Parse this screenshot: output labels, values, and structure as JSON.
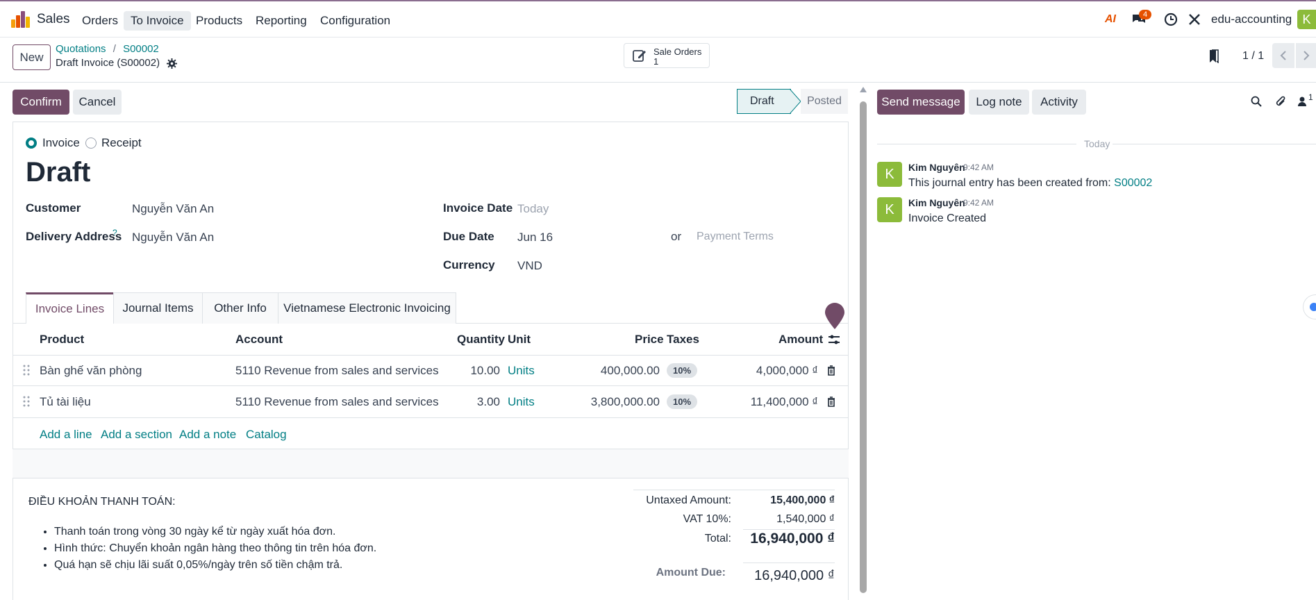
{
  "nav": {
    "app_name": "Sales",
    "menu": [
      "Orders",
      "To Invoice",
      "Products",
      "Reporting",
      "Configuration"
    ],
    "active_menu": "To Invoice",
    "ai_label": "AI",
    "message_count": "4",
    "company": "edu-accounting",
    "user_initial": "K"
  },
  "control": {
    "new_label": "New",
    "breadcrumb_root": "Quotations",
    "breadcrumb_sep": "/",
    "breadcrumb_parent": "S00002",
    "record_title": "Draft Invoice (S00002)",
    "smart_button_label": "Sale Orders",
    "smart_button_count": "1",
    "pager": "1 / 1"
  },
  "actions": {
    "confirm": "Confirm",
    "cancel": "Cancel",
    "status_draft": "Draft",
    "status_posted": "Posted"
  },
  "form": {
    "type_invoice": "Invoice",
    "type_receipt": "Receipt",
    "state_title": "Draft",
    "customer_label": "Customer",
    "customer_value": "Nguyễn Văn An",
    "delivery_label": "Delivery Address",
    "delivery_help": "?",
    "delivery_value": "Nguyễn Văn An",
    "invoice_date_label": "Invoice Date",
    "invoice_date_placeholder": "Today",
    "due_date_label": "Due Date",
    "due_date_value": "Jun 16",
    "or_label": "or",
    "payment_terms_placeholder": "Payment Terms",
    "currency_label": "Currency",
    "currency_value": "VND"
  },
  "tabs": [
    "Invoice Lines",
    "Journal Items",
    "Other Info",
    "Vietnamese Electronic Invoicing"
  ],
  "table": {
    "headers": {
      "product": "Product",
      "account": "Account",
      "quantity": "Quantity",
      "unit": "Unit",
      "price": "Price",
      "taxes": "Taxes",
      "amount": "Amount"
    },
    "rows": [
      {
        "product": "Bàn ghế văn phòng",
        "account": "5110 Revenue from sales and services",
        "quantity": "10.00",
        "unit": "Units",
        "price": "400,000.00",
        "tax": "10%",
        "amount": "4,000,000 ₫"
      },
      {
        "product": "Tủ tài liệu",
        "account": "5110 Revenue from sales and services",
        "quantity": "3.00",
        "unit": "Units",
        "price": "3,800,000.00",
        "tax": "10%",
        "amount": "11,400,000 ₫"
      }
    ],
    "add_line": "Add a line",
    "add_section": "Add a section",
    "add_note": "Add a note",
    "catalog": "Catalog"
  },
  "terms": {
    "heading": "ĐIỀU KHOẢN THANH TOÁN:",
    "items": [
      "Thanh toán trong vòng 30 ngày kể từ ngày xuất hóa đơn.",
      "Hình thức: Chuyển khoản ngân hàng theo thông tin trên hóa đơn.",
      "Quá hạn sẽ chịu lãi suất 0,05%/ngày trên số tiền chậm trả."
    ]
  },
  "totals": {
    "untaxed_label": "Untaxed Amount:",
    "untaxed_value": "15,400,000 ₫",
    "vat_label": "VAT 10%:",
    "vat_value": "1,540,000 ₫",
    "total_label": "Total:",
    "total_value": "16,940,000 ₫",
    "due_label": "Amount Due:",
    "due_value": "16,940,000 ₫"
  },
  "chatter": {
    "send_message": "Send message",
    "log_note": "Log note",
    "activity": "Activity",
    "follower_count": "1",
    "date_separator": "Today",
    "messages": [
      {
        "initial": "K",
        "author": "Kim Nguyên",
        "time": "9:42 AM",
        "text": "This journal entry has been created from:",
        "link": "S00002"
      },
      {
        "initial": "K",
        "author": "Kim Nguyên",
        "time": "9:42 AM",
        "text": "Invoice Created"
      }
    ]
  }
}
